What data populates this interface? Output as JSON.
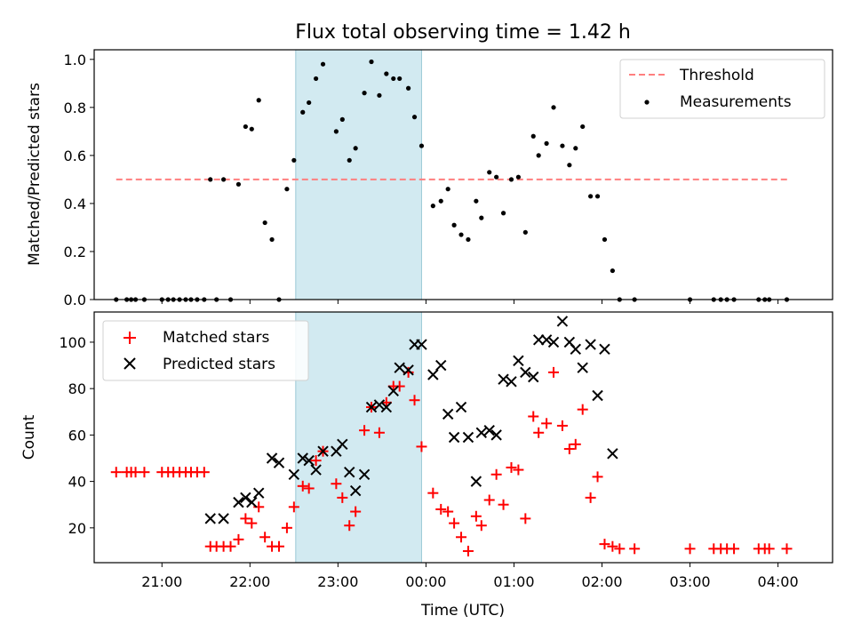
{
  "chart_data": [
    {
      "type": "scatter",
      "title": "Flux total observing time = 1.42 h",
      "xlabel": "",
      "ylabel": "Matched/Predicted stars",
      "xlim": [
        20.23,
        28.62
      ],
      "ylim": [
        0,
        1.04
      ],
      "yticks": [
        0.0,
        0.2,
        0.4,
        0.6,
        0.8,
        1.0
      ],
      "ytick_labels": [
        "0.0",
        "0.2",
        "0.4",
        "0.6",
        "0.8",
        "1.0"
      ],
      "x_unit": "hours since 00:00 of the first observing day (UTC)",
      "shaded_span": [
        22.52,
        23.95
      ],
      "shade_color": "#add8e6",
      "legend": "top-right",
      "series": [
        {
          "name": "Threshold",
          "kind": "line",
          "color": "#ff7f7f",
          "x": [
            20.48,
            28.12
          ],
          "y": [
            0.5,
            0.5
          ]
        },
        {
          "name": "Measurements",
          "kind": "scatter",
          "color": "#000000",
          "x": [
            20.48,
            20.6,
            20.65,
            20.7,
            20.8,
            21.0,
            21.07,
            21.13,
            21.2,
            21.27,
            21.33,
            21.4,
            21.48,
            21.55,
            21.62,
            21.7,
            21.78,
            21.87,
            21.95,
            22.02,
            22.1,
            22.17,
            22.25,
            22.33,
            22.42,
            22.5,
            22.6,
            22.67,
            22.75,
            22.83,
            22.98,
            23.05,
            23.13,
            23.2,
            23.3,
            23.38,
            23.47,
            23.55,
            23.63,
            23.7,
            23.8,
            23.87,
            23.95,
            24.08,
            24.17,
            24.25,
            24.32,
            24.4,
            24.48,
            24.57,
            24.63,
            24.72,
            24.8,
            24.88,
            24.97,
            25.05,
            25.13,
            25.22,
            25.28,
            25.37,
            25.45,
            25.55,
            25.63,
            25.7,
            25.78,
            25.87,
            25.95,
            26.03,
            26.12,
            26.2,
            26.37,
            27.0,
            27.27,
            27.35,
            27.42,
            27.5,
            27.78,
            27.85,
            27.9,
            28.1
          ],
          "y": [
            0.0,
            0.0,
            0.0,
            0.0,
            0.0,
            0.0,
            0.0,
            0.0,
            0.0,
            0.0,
            0.0,
            0.0,
            0.0,
            0.5,
            0.0,
            0.5,
            0.0,
            0.48,
            0.72,
            0.71,
            0.83,
            0.32,
            0.25,
            0.0,
            0.46,
            0.58,
            0.78,
            0.82,
            0.92,
            0.98,
            0.7,
            0.75,
            0.58,
            0.63,
            0.86,
            0.99,
            0.85,
            0.94,
            0.92,
            0.92,
            0.88,
            0.76,
            0.64,
            0.39,
            0.41,
            0.46,
            0.31,
            0.27,
            0.25,
            0.41,
            0.34,
            0.53,
            0.51,
            0.36,
            0.5,
            0.51,
            0.28,
            0.68,
            0.6,
            0.65,
            0.8,
            0.64,
            0.56,
            0.63,
            0.72,
            0.43,
            0.43,
            0.25,
            0.12,
            0.0,
            0.0,
            0.0,
            0.0,
            0.0,
            0.0,
            0.0,
            0.0,
            0.0,
            0.0,
            0.0
          ]
        }
      ]
    },
    {
      "type": "scatter",
      "title": "",
      "xlabel": "Time (UTC)",
      "ylabel": "Count",
      "xlim": [
        20.23,
        28.62
      ],
      "ylim": [
        5,
        113
      ],
      "yticks": [
        20,
        40,
        60,
        80,
        100
      ],
      "ytick_labels": [
        "20",
        "40",
        "60",
        "80",
        "100"
      ],
      "xticks": [
        21,
        22,
        23,
        24,
        25,
        26,
        27,
        28
      ],
      "xtick_labels": [
        "21:00",
        "22:00",
        "23:00",
        "00:00",
        "01:00",
        "02:00",
        "03:00",
        "04:00"
      ],
      "x_unit": "hours since 00:00 of the first observing day (UTC)",
      "shaded_span": [
        22.52,
        23.95
      ],
      "shade_color": "#add8e6",
      "legend": "top-left",
      "series": [
        {
          "name": "Matched stars",
          "kind": "scatter",
          "marker": "+",
          "color": "#ff0000",
          "x": [
            20.48,
            20.6,
            20.65,
            20.7,
            20.8,
            21.0,
            21.07,
            21.13,
            21.2,
            21.27,
            21.33,
            21.4,
            21.48,
            21.55,
            21.62,
            21.7,
            21.78,
            21.87,
            21.95,
            22.02,
            22.1,
            22.17,
            22.25,
            22.33,
            22.42,
            22.5,
            22.6,
            22.67,
            22.75,
            22.83,
            22.98,
            23.05,
            23.13,
            23.2,
            23.3,
            23.38,
            23.47,
            23.55,
            23.63,
            23.7,
            23.8,
            23.87,
            23.95,
            24.08,
            24.17,
            24.25,
            24.32,
            24.4,
            24.48,
            24.57,
            24.63,
            24.72,
            24.8,
            24.88,
            24.97,
            25.05,
            25.13,
            25.22,
            25.28,
            25.37,
            25.45,
            25.55,
            25.63,
            25.7,
            25.78,
            25.87,
            25.95,
            26.03,
            26.12,
            26.2,
            26.37,
            27.0,
            27.27,
            27.35,
            27.42,
            27.5,
            27.78,
            27.85,
            27.9,
            28.1
          ],
          "y": [
            44,
            44,
            44,
            44,
            44,
            44,
            44,
            44,
            44,
            44,
            44,
            44,
            44,
            12,
            12,
            12,
            12,
            15,
            24,
            22,
            29,
            16,
            12,
            12,
            20,
            29,
            38,
            37,
            49,
            53,
            39,
            33,
            21,
            27,
            62,
            72,
            61,
            74,
            81,
            81,
            87,
            75,
            55,
            35,
            28,
            27,
            22,
            16,
            10,
            25,
            21,
            32,
            43,
            30,
            46,
            45,
            24,
            68,
            61,
            65,
            87,
            64,
            54,
            56,
            71,
            33,
            42,
            13,
            12,
            11,
            11,
            11,
            11,
            11,
            11,
            11,
            11,
            11,
            11,
            11
          ]
        },
        {
          "name": "Predicted stars",
          "kind": "scatter",
          "marker": "x",
          "color": "#000000",
          "x": [
            21.55,
            21.7,
            21.87,
            21.95,
            22.02,
            22.1,
            22.25,
            22.33,
            22.5,
            22.6,
            22.67,
            22.75,
            22.83,
            22.98,
            23.05,
            23.13,
            23.2,
            23.3,
            23.38,
            23.47,
            23.55,
            23.63,
            23.7,
            23.8,
            23.87,
            23.95,
            24.08,
            24.17,
            24.25,
            24.32,
            24.4,
            24.48,
            24.57,
            24.63,
            24.72,
            24.8,
            24.88,
            24.97,
            25.05,
            25.13,
            25.22,
            25.28,
            25.37,
            25.45,
            25.55,
            25.63,
            25.7,
            25.78,
            25.87,
            25.95,
            26.03,
            26.12
          ],
          "y": [
            24,
            24,
            31,
            33,
            31,
            35,
            50,
            48,
            43,
            50,
            49,
            45,
            53,
            53,
            56,
            44,
            36,
            43,
            72,
            73,
            72,
            79,
            89,
            88,
            99,
            99,
            86,
            90,
            69,
            59,
            72,
            59,
            40,
            61,
            62,
            60,
            84,
            83,
            92,
            87,
            85,
            101,
            101,
            100,
            109,
            100,
            97,
            89,
            99,
            77,
            97,
            52
          ]
        }
      ]
    }
  ]
}
